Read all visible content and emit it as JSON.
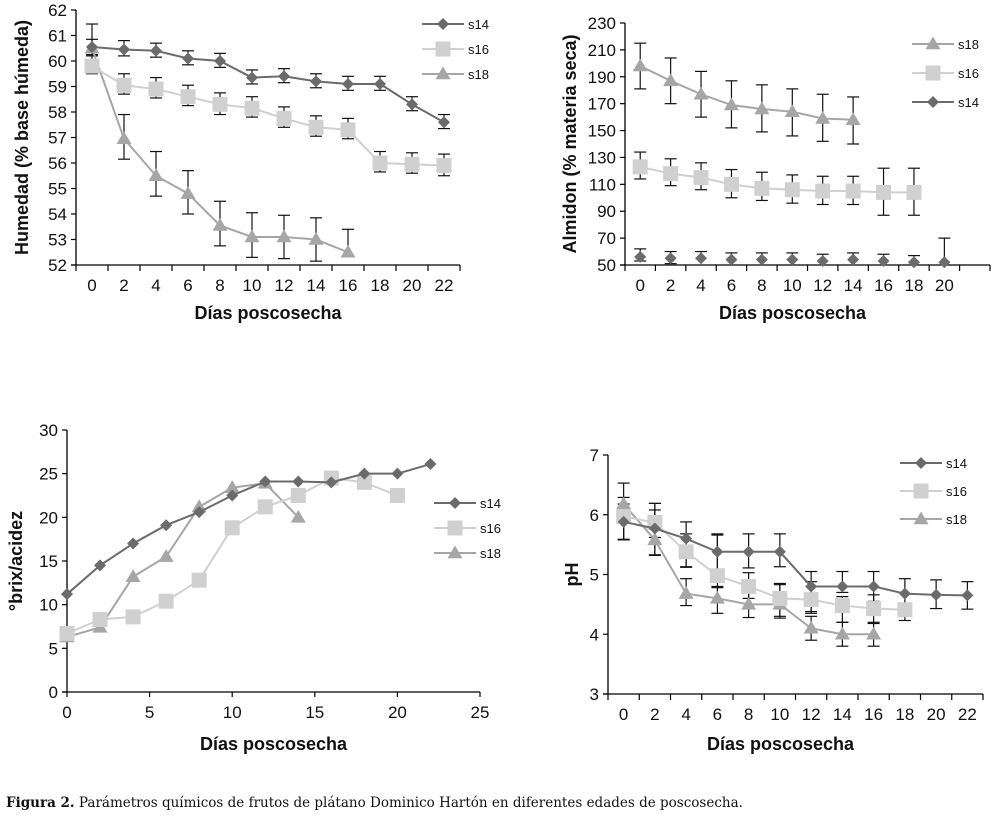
{
  "caption": {
    "label": "Figura 2.",
    "text": "Parámetros químicos de frutos de plátano Dominico Hartón en diferentes edades de poscosecha."
  },
  "series_style": {
    "s14": {
      "color": "#6b6b6b",
      "marker": "diamond"
    },
    "s16": {
      "color": "#d0d0d0",
      "marker": "square"
    },
    "s18": {
      "color": "#a6a6a6",
      "marker": "triangle"
    }
  },
  "error_bar_color": "#111111",
  "chart_data": [
    {
      "id": "humedad",
      "type": "line",
      "xaxis_type": "category",
      "title": "",
      "xlabel": "Días poscosecha",
      "ylabel": "Humedad (% base húmeda)",
      "categories": [
        "0",
        "2",
        "4",
        "6",
        "8",
        "10",
        "12",
        "14",
        "16",
        "18",
        "20",
        "22"
      ],
      "ylim": [
        52,
        62
      ],
      "yticks": [
        52,
        53,
        54,
        55,
        56,
        57,
        58,
        59,
        60,
        61,
        62
      ],
      "legend": {
        "position": "top-right",
        "order": [
          "s14",
          "s16",
          "s18"
        ]
      },
      "grid": false,
      "series": [
        {
          "name": "s14",
          "values": [
            60.55,
            60.45,
            60.4,
            60.1,
            60.0,
            59.35,
            59.4,
            59.2,
            59.1,
            59.1,
            58.3,
            57.6
          ],
          "err_low": [
            0.3,
            0.25,
            0.25,
            0.25,
            0.25,
            0.25,
            0.25,
            0.25,
            0.25,
            0.25,
            0.25,
            0.25
          ],
          "err_high": [
            0.9,
            0.35,
            0.3,
            0.3,
            0.3,
            0.3,
            0.3,
            0.3,
            0.3,
            0.3,
            0.3,
            0.3
          ]
        },
        {
          "name": "s16",
          "values": [
            59.8,
            59.05,
            58.9,
            58.6,
            58.3,
            58.15,
            57.75,
            57.4,
            57.3,
            56.0,
            55.95,
            55.9
          ],
          "err_low": [
            0.3,
            0.35,
            0.35,
            0.35,
            0.4,
            0.35,
            0.35,
            0.35,
            0.35,
            0.35,
            0.35,
            0.4
          ],
          "err_high": [
            0.4,
            0.45,
            0.45,
            0.45,
            0.45,
            0.45,
            0.45,
            0.45,
            0.45,
            0.45,
            0.45,
            0.45
          ]
        },
        {
          "name": "s18",
          "values": [
            60.5,
            56.95,
            55.5,
            54.8,
            53.55,
            53.1,
            53.1,
            53.0,
            52.5
          ],
          "err_low": [
            0.3,
            0.8,
            0.8,
            0.8,
            0.8,
            0.8,
            0.85,
            0.85,
            0
          ],
          "err_high": [
            0.35,
            0.95,
            0.95,
            0.9,
            0.95,
            0.95,
            0.85,
            0.85,
            0.9
          ]
        }
      ]
    },
    {
      "id": "almidon",
      "type": "line",
      "xaxis_type": "category",
      "title": "",
      "xlabel": "Días poscosecha",
      "ylabel": "Almidon (% materia seca)",
      "categories": [
        "0",
        "2",
        "4",
        "6",
        "8",
        "10",
        "12",
        "14",
        "16",
        "18",
        "20",
        ""
      ],
      "ylim": [
        50,
        230
      ],
      "yticks": [
        50,
        70,
        90,
        110,
        130,
        150,
        170,
        190,
        210,
        230
      ],
      "legend": {
        "position": "top-right",
        "order": [
          "s18",
          "s16",
          "s14"
        ]
      },
      "grid": false,
      "series": [
        {
          "name": "s18",
          "values": [
            198,
            187,
            177,
            169,
            166,
            164,
            159,
            158
          ],
          "err_low": [
            17,
            17,
            17,
            17,
            17,
            18,
            17,
            18
          ],
          "err_high": [
            17,
            17,
            17,
            18,
            18,
            17,
            18,
            17
          ],
          "line": true
        },
        {
          "name": "s16",
          "values": [
            123,
            118,
            115,
            110,
            107,
            106,
            105,
            105,
            104,
            104
          ],
          "err_low": [
            9,
            9,
            9,
            10,
            9,
            10,
            10,
            10,
            17,
            17
          ],
          "err_high": [
            11,
            11,
            11,
            11,
            12,
            11,
            11,
            11,
            18,
            18
          ],
          "line": true
        },
        {
          "name": "s14",
          "values": [
            56,
            55,
            55,
            54,
            54,
            54,
            53,
            54,
            53,
            52,
            52
          ],
          "err_low": [
            3,
            4,
            0,
            0,
            0,
            0,
            0,
            0,
            0,
            0,
            0
          ],
          "err_high": [
            6,
            5,
            5,
            5,
            5,
            5,
            5,
            5,
            5,
            5,
            18
          ],
          "line": false
        }
      ]
    },
    {
      "id": "brix_acidez",
      "type": "line",
      "xaxis_type": "numeric",
      "title": "",
      "xlabel": "Días poscosecha",
      "ylabel": "°brix/acidez",
      "xlim": [
        0,
        25
      ],
      "xticks": [
        0,
        5,
        10,
        15,
        20,
        25
      ],
      "ylim": [
        0,
        30
      ],
      "yticks": [
        0,
        5,
        10,
        15,
        20,
        25,
        30
      ],
      "legend": {
        "position": "right",
        "order": [
          "s14",
          "s16",
          "s18"
        ]
      },
      "grid": false,
      "series": [
        {
          "name": "s14",
          "x": [
            0,
            2,
            4,
            6,
            8,
            10,
            12,
            14,
            16,
            18,
            20,
            22
          ],
          "values": [
            11.2,
            14.5,
            17.0,
            19.1,
            20.6,
            22.5,
            24.1,
            24.1,
            24.0,
            25.0,
            25.0,
            26.1
          ]
        },
        {
          "name": "s16",
          "x": [
            0,
            2,
            4,
            6,
            8,
            10,
            12,
            14,
            16,
            18,
            20
          ],
          "values": [
            6.7,
            8.3,
            8.6,
            10.4,
            12.8,
            18.8,
            21.2,
            22.5,
            24.5,
            24.0,
            22.5
          ]
        },
        {
          "name": "s18",
          "x": [
            0,
            2,
            4,
            6,
            8,
            10,
            12,
            14
          ],
          "values": [
            6.3,
            7.4,
            13.2,
            15.5,
            21.2,
            23.4,
            23.9,
            20.0
          ]
        }
      ]
    },
    {
      "id": "ph",
      "type": "line",
      "xaxis_type": "category",
      "title": "",
      "xlabel": "Días poscosecha",
      "ylabel": "pH",
      "categories": [
        "0",
        "2",
        "4",
        "6",
        "8",
        "10",
        "12",
        "14",
        "16",
        "18",
        "20",
        "22"
      ],
      "ylim": [
        3,
        7
      ],
      "yticks": [
        3,
        4,
        5,
        6,
        7
      ],
      "legend": {
        "position": "top-right",
        "order": [
          "s14",
          "s16",
          "s18"
        ]
      },
      "grid": false,
      "series": [
        {
          "name": "s14",
          "values": [
            5.88,
            5.77,
            5.6,
            5.38,
            5.38,
            5.38,
            4.8,
            4.8,
            4.8,
            4.68,
            4.66,
            4.65
          ],
          "err_low": [
            0.3,
            0.45,
            0.48,
            0.45,
            0.27,
            0.25,
            0.45,
            0.1,
            0.25,
            0.25,
            0.23,
            0.23
          ],
          "err_high": [
            0.3,
            0.42,
            0.28,
            0.28,
            0.3,
            0.3,
            0.25,
            0.25,
            0.25,
            0.25,
            0.25,
            0.23
          ]
        },
        {
          "name": "s16",
          "values": [
            5.97,
            5.87,
            5.38,
            4.98,
            4.8,
            4.6,
            4.58,
            4.48,
            4.43,
            4.41
          ],
          "err_low": [
            0.38,
            0.25,
            0.25,
            0.2,
            0.2,
            0.3,
            0.2,
            0.28,
            0.25,
            0.18
          ],
          "err_high": [
            0.32,
            0.32,
            0.3,
            0.7,
            0.23,
            0.23,
            0.3,
            0.15,
            0.23,
            0.1
          ]
        },
        {
          "name": "s18",
          "values": [
            6.18,
            5.58,
            4.68,
            4.6,
            4.5,
            4.5,
            4.1,
            4.0,
            4.0
          ],
          "err_low": [
            0.6,
            0.25,
            0.2,
            0.25,
            0.22,
            0.23,
            0.2,
            0.2,
            0.2
          ],
          "err_high": [
            0.35,
            0.5,
            0.25,
            0.2,
            0.25,
            0.35,
            0.2,
            0.2,
            0.2
          ]
        }
      ]
    }
  ]
}
